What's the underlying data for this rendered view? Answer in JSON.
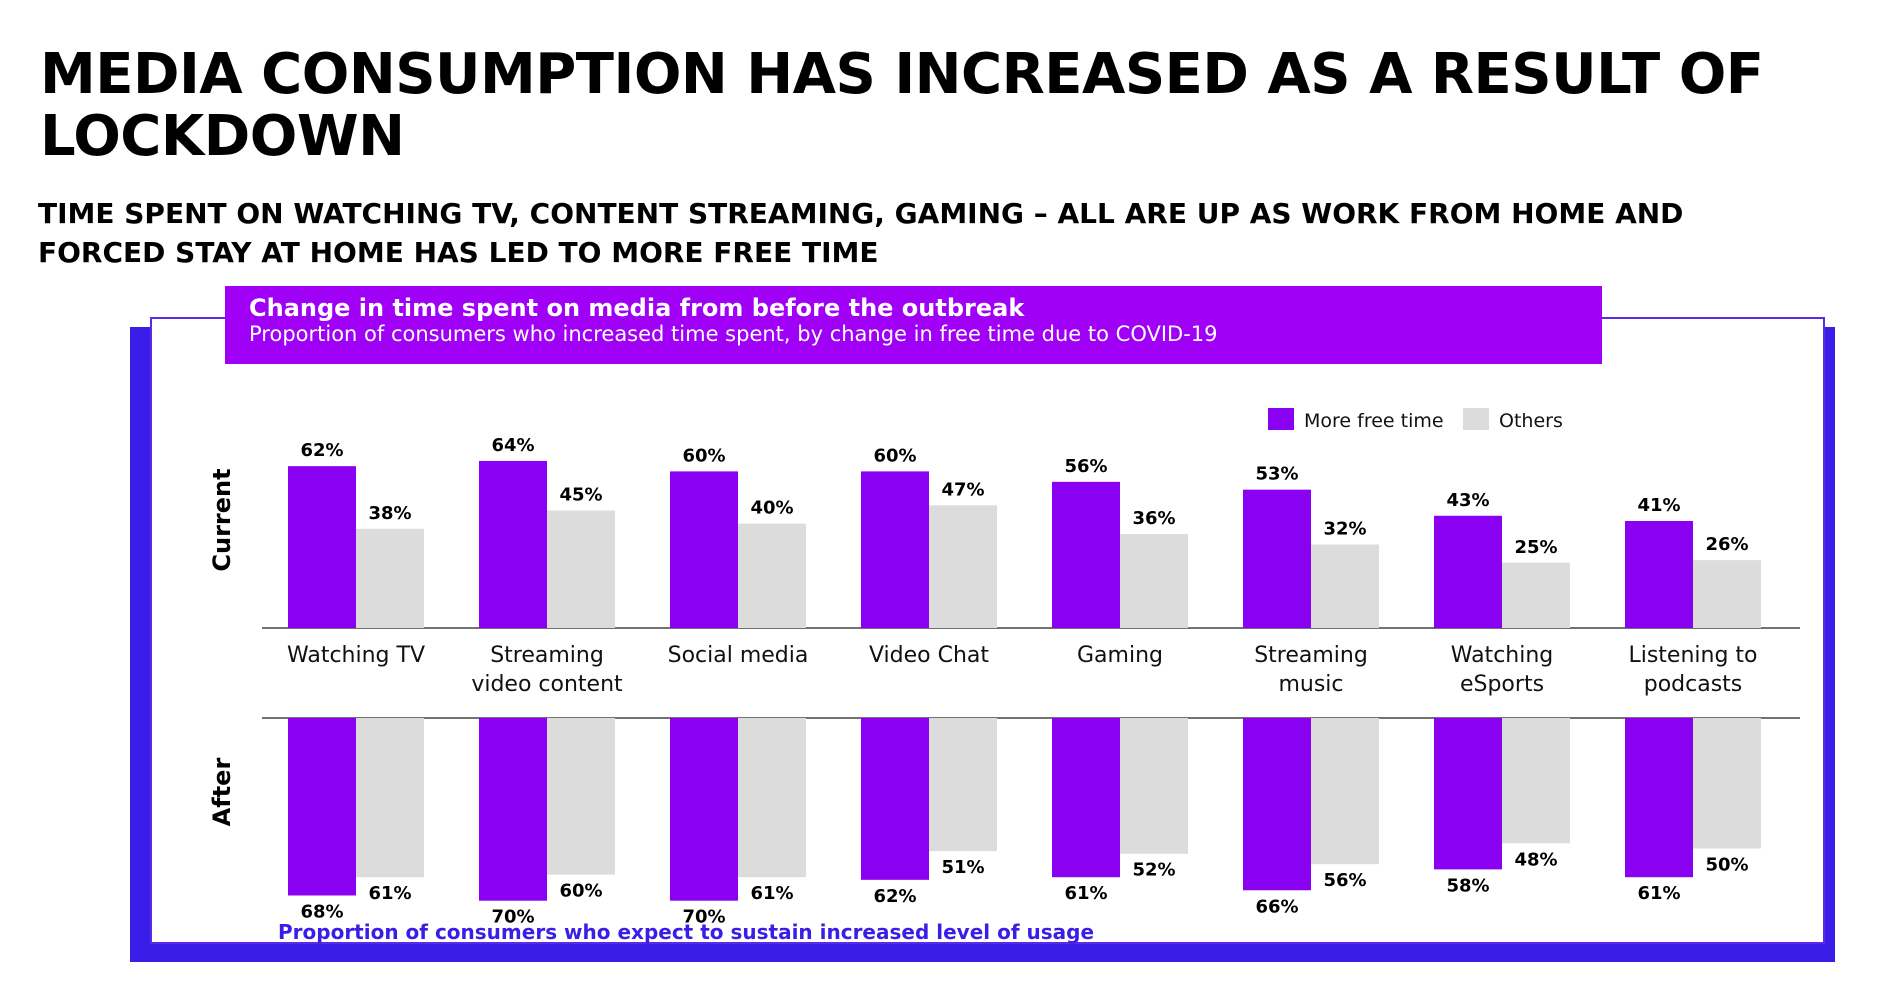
{
  "title": "MEDIA CONSUMPTION HAS INCREASED AS A RESULT OF LOCKDOWN",
  "subtitle": "TIME SPENT ON WATCHING TV, CONTENT STREAMING, GAMING – ALL ARE UP AS WORK FROM HOME AND FORCED STAY AT HOME HAS LED TO MORE FREE TIME",
  "footnote": "Proportion of consumers who expect to sustain increased level of usage",
  "colors": {
    "more_free_time": "#8a00f0",
    "others": "#dcdcdc",
    "panel_border": "#3a1de6",
    "header": "#a000f5"
  },
  "chart_data": {
    "type": "bar",
    "title": "Change in time spent on  media from before the outbreak",
    "subtitle": "Proportion of consumers who increased time spent, by change in free time due to COVID-19",
    "categories": [
      "Watching TV",
      "Streaming video content",
      "Social media",
      "Video Chat",
      "Gaming",
      "Streaming music",
      "Watching eSports",
      "Listening to podcasts"
    ],
    "category_lines": [
      [
        "Watching TV"
      ],
      [
        "Streaming",
        "video content"
      ],
      [
        "Social media"
      ],
      [
        "Video Chat"
      ],
      [
        "Gaming"
      ],
      [
        "Streaming",
        "music"
      ],
      [
        "Watching",
        "eSports"
      ],
      [
        "Listening to",
        "podcasts"
      ]
    ],
    "panels": [
      {
        "label": "Current",
        "direction": "up",
        "series": [
          {
            "name": "More free time",
            "values": [
              62,
              64,
              60,
              60,
              56,
              53,
              43,
              41
            ]
          },
          {
            "name": "Others",
            "values": [
              38,
              45,
              40,
              47,
              36,
              32,
              25,
              26
            ]
          }
        ]
      },
      {
        "label": "After",
        "direction": "down",
        "series": [
          {
            "name": "More free time",
            "values": [
              68,
              70,
              70,
              62,
              61,
              66,
              58,
              61
            ]
          },
          {
            "name": "Others",
            "values": [
              61,
              60,
              61,
              51,
              52,
              56,
              48,
              50
            ]
          }
        ]
      }
    ],
    "unit": "%",
    "legend": {
      "position": "top-right",
      "entries": [
        "More free time",
        "Others"
      ]
    },
    "ylim": [
      0,
      70
    ],
    "grid": false
  }
}
